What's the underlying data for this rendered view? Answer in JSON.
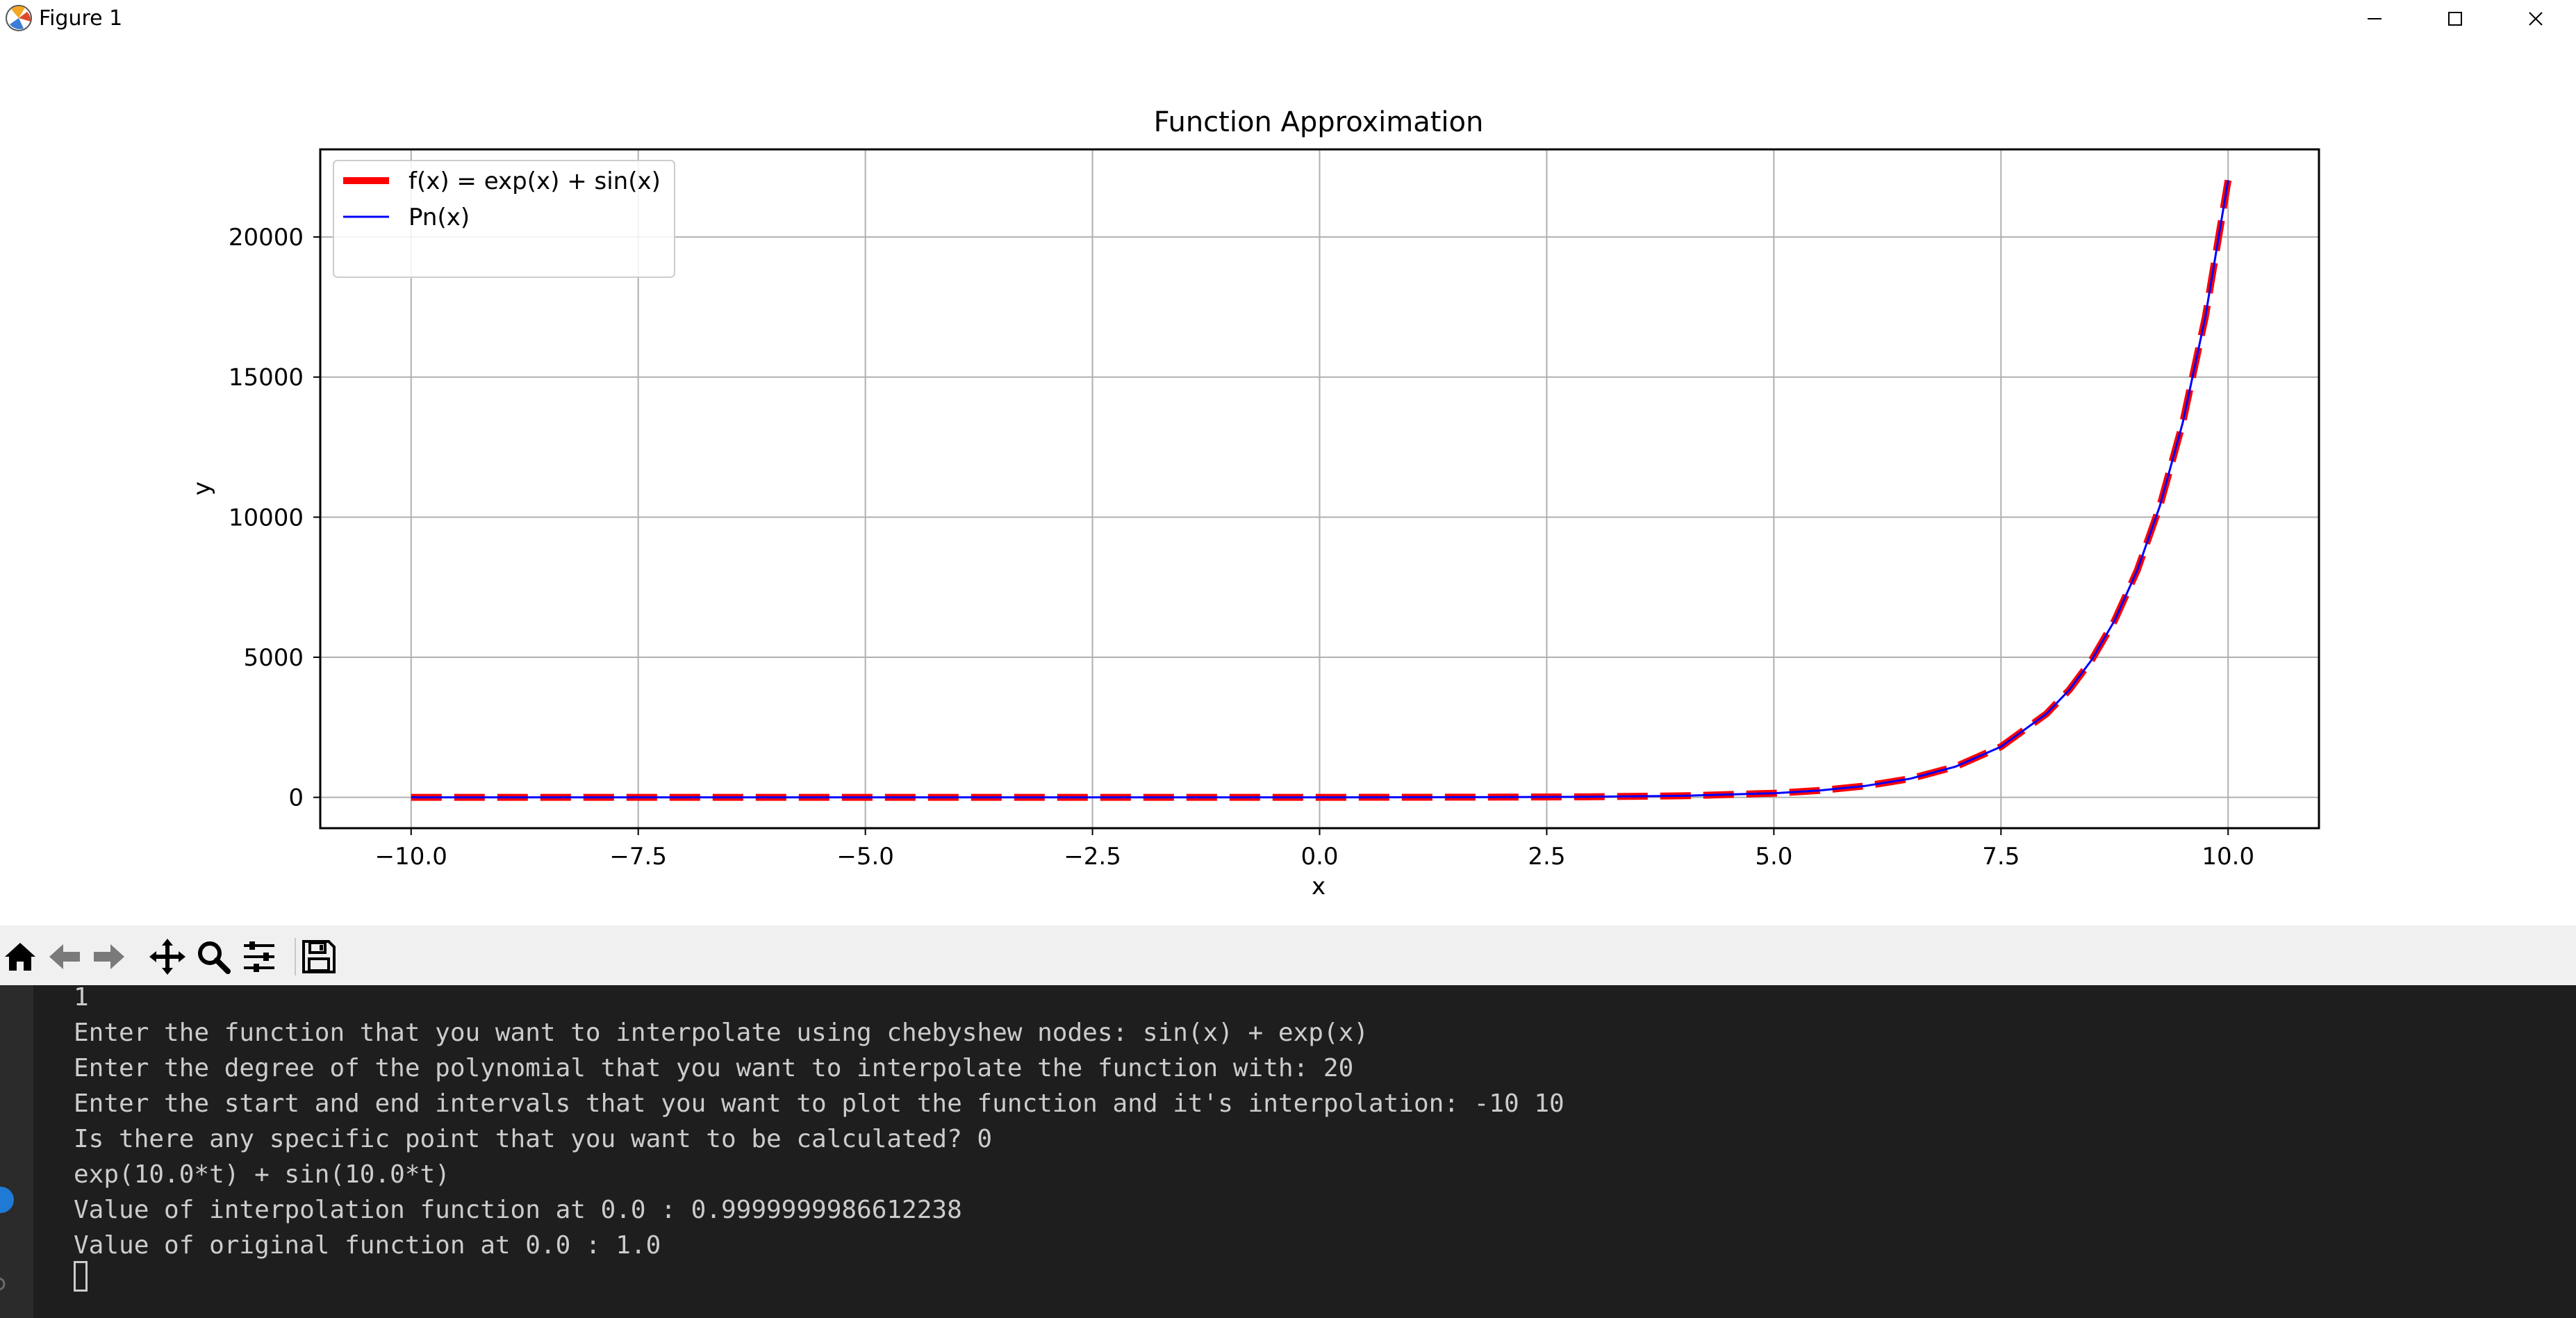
{
  "window": {
    "title": "Figure 1",
    "icons": [
      "matplotlib-logo-icon",
      "minimize-icon",
      "maximize-icon",
      "close-icon"
    ]
  },
  "figure": {
    "title": "Function Approximation",
    "xlabel": "x",
    "ylabel": "y"
  },
  "chart_data": {
    "type": "line",
    "title": "Function Approximation",
    "xlabel": "x",
    "ylabel": "y",
    "xlim": [
      -11,
      11
    ],
    "ylim": [
      -1101,
      23127
    ],
    "xticks": [
      -10.0,
      -7.5,
      -5.0,
      -2.5,
      0.0,
      2.5,
      5.0,
      7.5,
      10.0
    ],
    "xtick_labels": [
      "−10.0",
      "−7.5",
      "−5.0",
      "−2.5",
      "0.0",
      "2.5",
      "5.0",
      "7.5",
      "10.0"
    ],
    "yticks": [
      0,
      5000,
      10000,
      15000,
      20000
    ],
    "ytick_labels": [
      "0",
      "5000",
      "10000",
      "15000",
      "20000"
    ],
    "grid": true,
    "legend_position": "top-left",
    "series": [
      {
        "name": "f(x) = exp(x) + sin(x)",
        "color": "#ff0000",
        "style": "dashed",
        "x": [
          -10,
          -9,
          -8,
          -7,
          -6,
          -5,
          -4,
          -3,
          -2,
          -1,
          0,
          1,
          2,
          3,
          4,
          5,
          5.5,
          6,
          6.5,
          7,
          7.5,
          8,
          8.25,
          8.5,
          8.75,
          9,
          9.25,
          9.5,
          9.75,
          10
        ],
        "y": [
          0.54,
          -0.41,
          -0.99,
          -0.66,
          0.28,
          0.97,
          0.78,
          -0.09,
          -0.77,
          -0.47,
          1.0,
          3.56,
          8.3,
          20.23,
          53.84,
          147.45,
          243.98,
          403.15,
          665.36,
          1097.29,
          1809.0,
          2981.95,
          3827.7,
          4915.57,
          6310.2,
          8103.5,
          10404.4,
          13359.6,
          17154.0,
          22025.9
        ]
      },
      {
        "name": "Pn(x)",
        "color": "#0000ff",
        "style": "solid",
        "x": [
          -10,
          -9,
          -8,
          -7,
          -6,
          -5,
          -4,
          -3,
          -2,
          -1,
          0,
          1,
          2,
          3,
          4,
          5,
          5.5,
          6,
          6.5,
          7,
          7.5,
          8,
          8.25,
          8.5,
          8.75,
          9,
          9.25,
          9.5,
          9.75,
          10
        ],
        "y": [
          0.54,
          -0.41,
          -0.99,
          -0.66,
          0.28,
          0.97,
          0.78,
          -0.09,
          -0.77,
          -0.47,
          1.0,
          3.56,
          8.3,
          20.23,
          53.84,
          147.45,
          243.98,
          403.15,
          665.36,
          1097.29,
          1809.0,
          2981.95,
          3827.7,
          4915.57,
          6310.2,
          8103.5,
          10404.4,
          13359.6,
          17154.0,
          22025.9
        ]
      }
    ]
  },
  "toolbar": {
    "buttons": [
      "home-icon",
      "back-icon",
      "forward-icon",
      "pan-icon",
      "zoom-icon",
      "configure-subplots-icon",
      "save-icon"
    ]
  },
  "terminal": {
    "lines": [
      "1",
      "Enter the function that you want to interpolate using chebyshew nodes: sin(x) + exp(x)",
      "Enter the degree of the polynomial that you want to interpolate the function with: 20",
      "Enter the start and end intervals that you want to plot the function and it's interpolation: -10 10",
      "Is there any specific point that you want to be calculated? 0",
      "exp(10.0*t) + sin(10.0*t)",
      "Value of interpolation function at 0.0 : 0.9999999986612238",
      "Value of original function at 0.0 : 1.0"
    ]
  }
}
